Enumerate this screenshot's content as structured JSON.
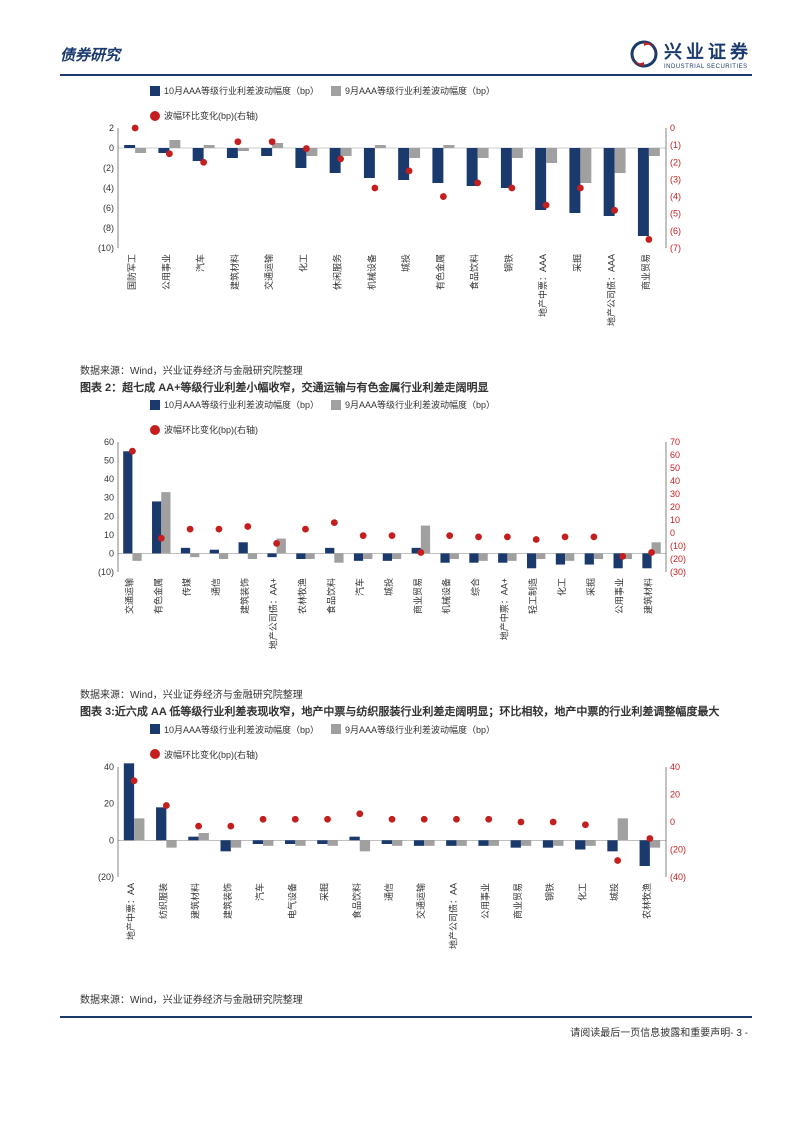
{
  "header": {
    "doc_title": "债券研究",
    "company_cn": "兴业证券",
    "company_en": "INDUSTRIAL SECURITIES"
  },
  "colors": {
    "bar_oct": "#1a3a6e",
    "bar_sep": "#a0a0a0",
    "dot": "#c41e1e",
    "axis": "#333333",
    "grid": "#e6e6e6",
    "header": "#1a3a6e"
  },
  "legend": {
    "oct": "10月AAA等级行业利差波动幅度（bp）",
    "sep": "9月AAA等级行业利差波动幅度（bp）",
    "dot": "波幅环比变化(bp)(右轴)"
  },
  "chart1": {
    "title_hidden": "图表1",
    "y_left": {
      "min": -10,
      "max": 2,
      "ticks": [
        2,
        0,
        -2,
        -4,
        -6,
        -8,
        -10
      ]
    },
    "y_right": {
      "min": -7,
      "max": 0,
      "ticks": [
        0,
        -1,
        -2,
        -3,
        -4,
        -5,
        -6,
        -7
      ]
    },
    "categories": [
      "国防军工",
      "公用事业",
      "汽车",
      "建筑材料",
      "交通运输",
      "化工",
      "休闲服务",
      "机械设备",
      "城投",
      "有色金属",
      "食品饮料",
      "钢铁",
      "地产中票：AAA",
      "采掘",
      "地产公司债：AAA",
      "商业贸易"
    ],
    "oct": [
      0.3,
      -0.5,
      -1.3,
      -1.0,
      -0.8,
      -2.0,
      -2.5,
      -3.0,
      -3.2,
      -3.5,
      -3.8,
      -4.0,
      -6.2,
      -6.5,
      -6.8,
      -8.8
    ],
    "sep": [
      -0.5,
      0.8,
      0.3,
      -0.3,
      0.5,
      -0.8,
      -0.8,
      0.3,
      -1.0,
      0.3,
      -1.0,
      -1.0,
      -1.5,
      -3.5,
      -2.5,
      -0.8
    ],
    "dot": [
      0.0,
      -1.5,
      -2.0,
      -0.8,
      -0.8,
      -1.2,
      -1.8,
      -3.5,
      -2.5,
      -4.0,
      -3.2,
      -3.5,
      -4.5,
      -3.5,
      -4.8,
      -6.5
    ]
  },
  "source_text": "数据来源：Wind，兴业证券经济与金融研究院整理",
  "chart2": {
    "title": "图表 2：超七成 AA+等级行业利差小幅收窄，交通运输与有色金属行业利差走阔明显",
    "y_left": {
      "min": -10,
      "max": 60,
      "ticks": [
        60,
        50,
        40,
        30,
        20,
        10,
        0,
        -10
      ]
    },
    "y_right": {
      "min": -30,
      "max": 70,
      "ticks": [
        70,
        60,
        50,
        40,
        30,
        20,
        10,
        0,
        -10,
        -20,
        -30
      ]
    },
    "categories": [
      "交通运输",
      "有色金属",
      "传媒",
      "通信",
      "建筑装饰",
      "地产公司债：AA+",
      "农林牧渔",
      "食品饮料",
      "汽车",
      "城投",
      "商业贸易",
      "机械设备",
      "综合",
      "地产中票：AA+",
      "轻工制造",
      "化工",
      "采掘",
      "公用事业",
      "建筑材料"
    ],
    "oct": [
      55,
      28,
      3,
      2,
      6,
      -2,
      -3,
      3,
      -4,
      -4,
      3,
      -5,
      -5,
      -5,
      -8,
      -6,
      -6,
      -8,
      -8
    ],
    "sep": [
      -4,
      33,
      -2,
      -3,
      -3,
      8,
      -3,
      -5,
      -3,
      -3,
      15,
      -3,
      -4,
      -4,
      -3,
      -4,
      -3,
      -3,
      6
    ],
    "dot": [
      63,
      -4,
      3,
      3,
      5,
      -8,
      3,
      8,
      -2,
      -2,
      -15,
      -2,
      -3,
      -3,
      -5,
      -3,
      -3,
      -18,
      -15
    ]
  },
  "chart3": {
    "title": "图表 3:近六成 AA 低等级行业利差表现收窄，地产中票与纺织服装行业利差走阔明显；环比相较，地产中票的行业利差调整幅度最大",
    "y_left": {
      "min": -20,
      "max": 40,
      "ticks": [
        40,
        20,
        0,
        -20
      ]
    },
    "y_right": {
      "min": -40,
      "max": 40,
      "ticks": [
        40,
        20,
        0,
        -20,
        -40
      ]
    },
    "categories": [
      "地产中票：AA",
      "纺织服装",
      "建筑材料",
      "建筑装饰",
      "汽车",
      "电气设备",
      "采掘",
      "食品饮料",
      "通信",
      "交通运输",
      "地产公司债：AA",
      "公用事业",
      "商业贸易",
      "钢铁",
      "化工",
      "城投",
      "农林牧渔"
    ],
    "oct": [
      42,
      18,
      2,
      -6,
      -2,
      -2,
      -2,
      2,
      -2,
      -3,
      -3,
      -3,
      -4,
      -4,
      -5,
      -6,
      -14
    ],
    "sep": [
      12,
      -4,
      4,
      -4,
      -3,
      -3,
      -3,
      -6,
      -3,
      -3,
      -3,
      -3,
      -3,
      -3,
      -3,
      12,
      -4
    ],
    "dot": [
      30,
      12,
      -3,
      -3,
      2,
      2,
      2,
      6,
      2,
      2,
      2,
      2,
      0,
      0,
      -2,
      -28,
      -12
    ]
  },
  "footer": {
    "text": "请阅读最后一页信息披露和重要声明- 3 -"
  }
}
